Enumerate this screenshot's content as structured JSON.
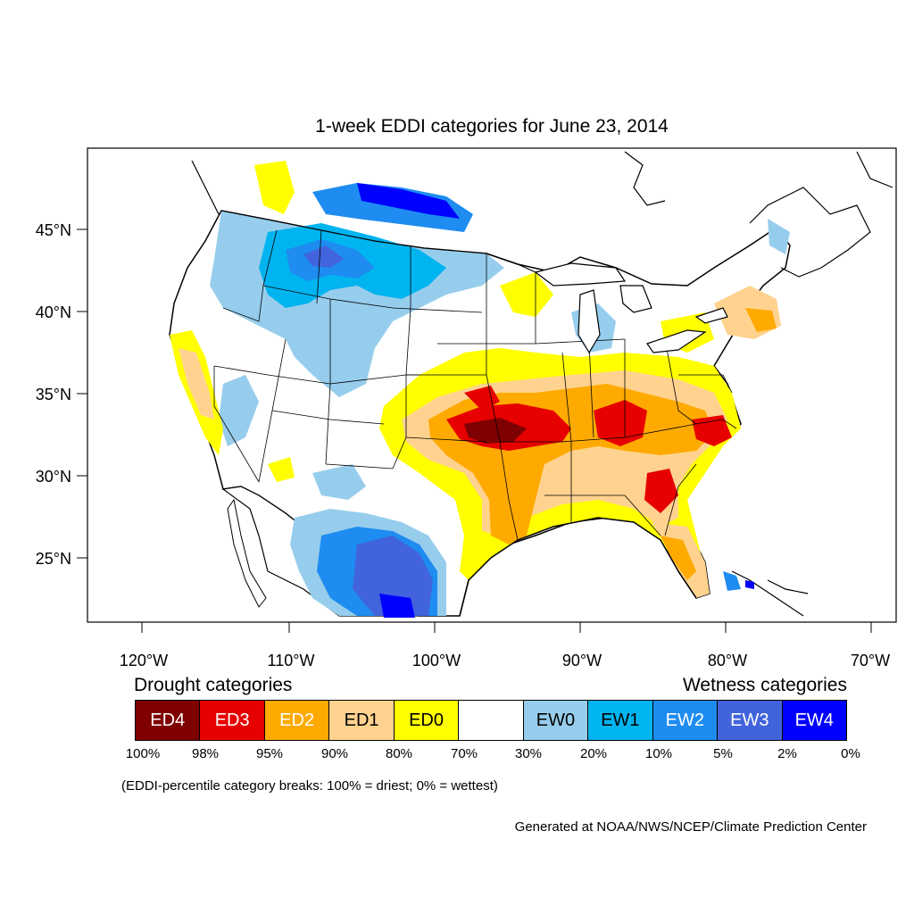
{
  "title": "1-week EDDI categories for June 23, 2014",
  "axes": {
    "lat_labels": [
      "45°N",
      "40°N",
      "35°N",
      "30°N",
      "25°N"
    ],
    "lon_labels": [
      "120°W",
      "110°W",
      "100°W",
      "90°W",
      "80°W",
      "70°W"
    ]
  },
  "legend": {
    "drought_heading": "Drought categories",
    "wetness_heading": "Wetness categories",
    "categories": [
      {
        "label": "ED4",
        "color": "#7f0000",
        "text_color": "#ffffff"
      },
      {
        "label": "ED3",
        "color": "#e60000",
        "text_color": "#ffffff"
      },
      {
        "label": "ED2",
        "color": "#ffaa00",
        "text_color": "#ffffff"
      },
      {
        "label": "ED1",
        "color": "#ffd38f",
        "text_color": "#000000"
      },
      {
        "label": "ED0",
        "color": "#ffff00",
        "text_color": "#000000"
      },
      {
        "label": "",
        "color": "#ffffff",
        "text_color": "#000000"
      },
      {
        "label": "EW0",
        "color": "#97cdec",
        "text_color": "#000000"
      },
      {
        "label": "EW1",
        "color": "#00b4f0",
        "text_color": "#000000"
      },
      {
        "label": "EW2",
        "color": "#1e8cf0",
        "text_color": "#ffffff"
      },
      {
        "label": "EW3",
        "color": "#4164dc",
        "text_color": "#ffffff"
      },
      {
        "label": "EW4",
        "color": "#0000ff",
        "text_color": "#ffffff"
      }
    ],
    "percentiles": [
      "100%",
      "98%",
      "95%",
      "90%",
      "80%",
      "70%",
      "30%",
      "20%",
      "10%",
      "5%",
      "2%",
      "0%"
    ]
  },
  "note": "(EDDI-percentile category breaks: 100% = driest; 0% = wettest)",
  "credit": "Generated at NOAA/NWS/NCEP/Climate Prediction Center"
}
